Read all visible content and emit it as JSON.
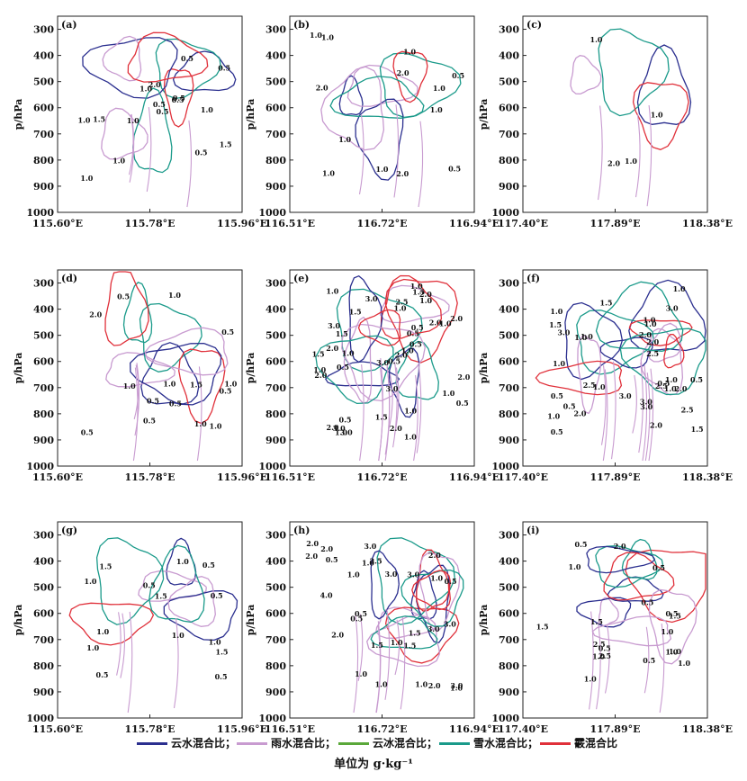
{
  "colors": {
    "cloud_water": "#2b2f8f",
    "rain_water": "#c89bd0",
    "cloud_ice": "#5aa83a",
    "snow": "#1a9a8a",
    "hail": "#e0303a"
  },
  "legend": {
    "cloud_water": "云水混合比；",
    "rain_water": "雨水混合比；",
    "cloud_ice": "云冰混合比；",
    "snow": "雪水混合比；",
    "hail": "霰混合比"
  },
  "unit_text": "单位为 g·kg⁻¹",
  "chart_data": [
    {
      "panel": "(a)",
      "type": "line",
      "ylabel": "p/hPa",
      "yticks": [
        300,
        400,
        500,
        600,
        700,
        800,
        900,
        1000
      ],
      "xticks": [
        "115.60°E",
        "115.78°E",
        "115.96°E"
      ],
      "contour_labels": [
        "2.0",
        "1.0",
        "0.5",
        "1.0",
        "0.5",
        "1.0",
        "0.5",
        "1.5",
        "0.5",
        "0.5",
        "1.0",
        "0.5",
        "1.0",
        "1.0",
        "1.5",
        "0.5"
      ]
    },
    {
      "panel": "(b)",
      "type": "line",
      "ylabel": "p/hPa",
      "yticks": [
        300,
        400,
        500,
        600,
        700,
        800,
        900,
        1000
      ],
      "xticks": [
        "116.51°E",
        "116.72°E",
        "116.94°E"
      ],
      "contour_labels": [
        "1.0",
        "2.0",
        "1.0",
        "2.0",
        "1.0",
        "1.0",
        "1.0",
        "1.0",
        "2.0",
        "1.0",
        "0.5",
        "1.0",
        "0.5"
      ]
    },
    {
      "panel": "(c)",
      "type": "line",
      "ylabel": "p/hPa",
      "yticks": [
        300,
        400,
        500,
        600,
        700,
        800,
        900,
        1000
      ],
      "xticks": [
        "117.40°E",
        "117.89°E",
        "118.38°E"
      ],
      "contour_labels": [
        "1.0",
        "2.0",
        "1.0",
        "1.0"
      ]
    },
    {
      "panel": "(d)",
      "type": "line",
      "ylabel": "p/hPa",
      "yticks": [
        300,
        400,
        500,
        600,
        700,
        800,
        900,
        1000
      ],
      "xticks": [
        "115.60°E",
        "115.78°E",
        "115.96°E"
      ],
      "contour_labels": [
        "2.0",
        "1.0",
        "0.5",
        "0.5",
        "1.0",
        "0.5",
        "0.5",
        "1.0",
        "0.5",
        "1.0",
        "0.5",
        "1.0",
        "1.5",
        "0.5",
        "1.0"
      ]
    },
    {
      "panel": "(e)",
      "type": "line",
      "ylabel": "p/hPa",
      "yticks": [
        300,
        400,
        500,
        600,
        700,
        800,
        900,
        1000
      ],
      "xticks": [
        "116.51°E",
        "116.72°E",
        "116.94°E"
      ],
      "contour_labels": [
        "1.0",
        "1.0",
        "2.0",
        "1.0",
        "2.0",
        "1.0",
        "3.0",
        "1.0",
        "2.0",
        "3.0",
        "3.0",
        "2.0",
        "1.0",
        "2.0",
        "3.0",
        "1.0",
        "0.5",
        "2.0",
        "1.0",
        "0.5",
        "0.5",
        "1.0",
        "3.0",
        "0.5",
        "1.5",
        "0.5",
        "2.0",
        "1.0",
        "3.0",
        "2.5",
        "0.5",
        "1.5",
        "1.0",
        "0.5",
        "1.5",
        "2.0",
        "1.0",
        "2.0",
        "1.5",
        "1.5"
      ]
    },
    {
      "panel": "(f)",
      "type": "line",
      "ylabel": "p/hPa",
      "yticks": [
        300,
        400,
        500,
        600,
        700,
        800,
        900,
        1000
      ],
      "xticks": [
        "117.40°E",
        "117.89°E",
        "118.38°E"
      ],
      "contour_labels": [
        "1.0",
        "3.0",
        "3.0",
        "1.0",
        "2.0",
        "2.0",
        "1.0",
        "3.0",
        "1.0",
        "2.0",
        "1.0",
        "3.0",
        "0.5",
        "1.0",
        "2.0",
        "1.5",
        "0.5",
        "1.0",
        "0.5",
        "1.5",
        "1.0",
        "2.5",
        "2.0",
        "1.0",
        "1.5",
        "2.5",
        "1.0",
        "3.0",
        "2.5",
        "0.5",
        "2.5",
        "1.0",
        "0.5"
      ]
    },
    {
      "panel": "(g)",
      "type": "line",
      "ylabel": "p/hPa",
      "yticks": [
        300,
        400,
        500,
        600,
        700,
        800,
        900,
        1000
      ],
      "xticks": [
        "115.60°E",
        "115.78°E",
        "115.96°E"
      ],
      "contour_labels": [
        "1.0",
        "0.5",
        "1.0",
        "1.5",
        "1.0",
        "0.5",
        "0.5",
        "1.5",
        "1.0",
        "0.5",
        "1.5",
        "1.0",
        "0.5",
        "1.0"
      ]
    },
    {
      "panel": "(h)",
      "type": "line",
      "ylabel": "p/hPa",
      "yticks": [
        300,
        400,
        500,
        600,
        700,
        800,
        900,
        1000
      ],
      "xticks": [
        "116.51°E",
        "116.72°E",
        "116.94°E"
      ],
      "contour_labels": [
        "2.0",
        "3.0",
        "1.0",
        "4.0",
        "3.0",
        "2.0",
        "3.0",
        "1.5",
        "2.0",
        "1.0",
        "2.0",
        "1.0",
        "3.0",
        "3.0",
        "2.0",
        "1.0",
        "1.0",
        "0.5",
        "0.5",
        "0.5",
        "1.5",
        "1.0",
        "2.0",
        "1.5",
        "3.0",
        "2.5",
        "1.0",
        "0.5",
        "1.0"
      ]
    },
    {
      "panel": "(i)",
      "type": "line",
      "ylabel": "p/hPa",
      "yticks": [
        300,
        400,
        500,
        600,
        700,
        800,
        900,
        1000
      ],
      "xticks": [
        "117.40°E",
        "117.89°E",
        "118.38°E"
      ],
      "contour_labels": [
        "1.0",
        "2.0",
        "1.0",
        "1.0",
        "0.5",
        "0.5",
        "1.5",
        "0.5",
        "1.0",
        "2.5",
        "1.0",
        "1.5",
        "0.5",
        "1.5",
        "0.5",
        "1.0",
        "2.5",
        "1.0",
        "0.5"
      ]
    }
  ]
}
